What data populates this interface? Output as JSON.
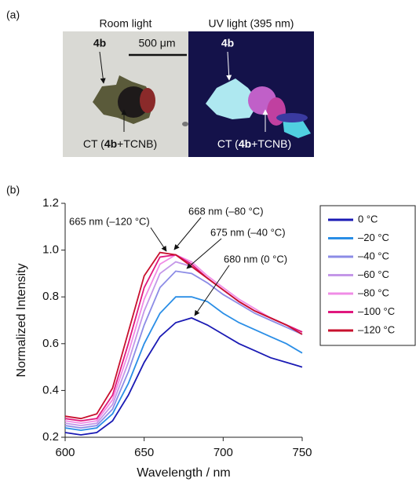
{
  "figure": {
    "panel_a_label": "(a)",
    "panel_b_label": "(b)",
    "room_light_title": "Room light",
    "uv_light_title": "UV light (395 nm)",
    "left_compound_label": "4b",
    "right_compound_label": "4b",
    "scale_bar": "500 μm",
    "left_ct_label": [
      "CT (",
      "4b",
      "+TCNB)"
    ],
    "right_ct_label": [
      "CT (",
      "4b",
      "+TCNB)"
    ]
  },
  "chart_data": {
    "type": "line",
    "xlabel": "Wavelength / nm",
    "ylabel": "Normalized Intensity",
    "x": [
      600,
      610,
      620,
      630,
      640,
      650,
      660,
      670,
      680,
      690,
      700,
      710,
      720,
      730,
      740,
      750
    ],
    "xlim": [
      600,
      750
    ],
    "xticks": [
      600,
      650,
      700,
      750
    ],
    "ylim": [
      0.2,
      1.2
    ],
    "yticks": [
      0.2,
      0.4,
      0.6,
      0.8,
      {
        "value": 1,
        "label": "1.0"
      },
      1.2
    ],
    "legend": "right",
    "series": [
      {
        "name": "0 °C",
        "color": "#1a1ab4",
        "values": [
          0.22,
          0.21,
          0.22,
          0.27,
          0.38,
          0.52,
          0.63,
          0.69,
          0.71,
          0.68,
          0.64,
          0.6,
          0.57,
          0.54,
          0.52,
          0.5
        ]
      },
      {
        "name": "–20 °C",
        "color": "#2a8ee6",
        "values": [
          0.24,
          0.23,
          0.24,
          0.3,
          0.43,
          0.6,
          0.73,
          0.8,
          0.8,
          0.78,
          0.73,
          0.69,
          0.66,
          0.63,
          0.6,
          0.56
        ]
      },
      {
        "name": "–40 °C",
        "color": "#8c8ce6",
        "values": [
          0.25,
          0.24,
          0.25,
          0.32,
          0.48,
          0.68,
          0.84,
          0.91,
          0.9,
          0.86,
          0.81,
          0.77,
          0.73,
          0.7,
          0.67,
          0.64
        ]
      },
      {
        "name": "–60 °C",
        "color": "#c497e8",
        "values": [
          0.26,
          0.25,
          0.26,
          0.34,
          0.52,
          0.74,
          0.9,
          0.95,
          0.93,
          0.88,
          0.83,
          0.78,
          0.74,
          0.71,
          0.68,
          0.65
        ]
      },
      {
        "name": "–80 °C",
        "color": "#f08ce6",
        "values": [
          0.27,
          0.26,
          0.27,
          0.36,
          0.56,
          0.79,
          0.94,
          0.98,
          0.95,
          0.89,
          0.84,
          0.79,
          0.75,
          0.71,
          0.68,
          0.65
        ]
      },
      {
        "name": "–100 °C",
        "color": "#e0187e",
        "values": [
          0.28,
          0.27,
          0.28,
          0.38,
          0.6,
          0.84,
          0.97,
          0.98,
          0.94,
          0.88,
          0.83,
          0.78,
          0.74,
          0.71,
          0.68,
          0.65
        ]
      },
      {
        "name": "–120 °C",
        "color": "#c8102e",
        "values": [
          0.29,
          0.28,
          0.3,
          0.41,
          0.65,
          0.89,
          0.99,
          0.98,
          0.93,
          0.88,
          0.83,
          0.78,
          0.74,
          0.71,
          0.68,
          0.64
        ]
      }
    ],
    "annotations": [
      "665 nm (–120 °C)",
      "668 nm (–80 °C)",
      "675 nm (–40 °C)",
      "680 nm (0 °C)"
    ]
  }
}
